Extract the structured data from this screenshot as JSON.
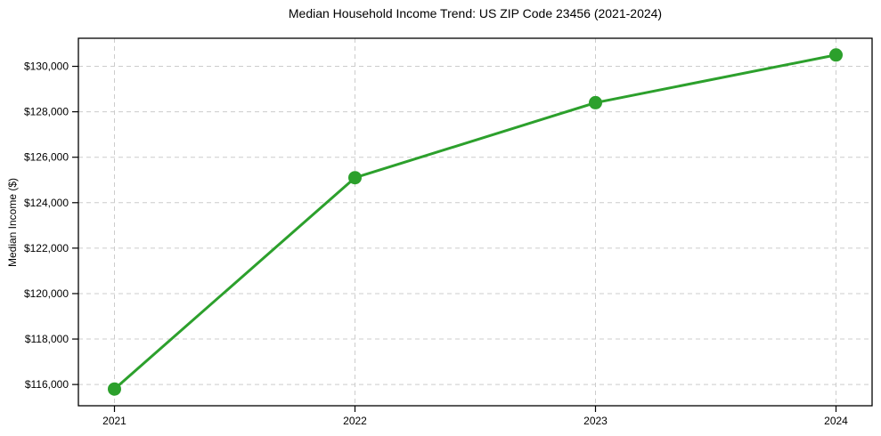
{
  "chart_data": {
    "type": "line",
    "title": "Median Household Income Trend: US ZIP Code 23456 (2021-2024)",
    "xlabel": "",
    "ylabel": "Median Income ($)",
    "x": [
      2021,
      2022,
      2023,
      2024
    ],
    "series": [
      {
        "name": "Median Household Income",
        "values": [
          115800,
          125100,
          128400,
          130500
        ]
      }
    ],
    "xtick_labels": [
      "2021",
      "2022",
      "2023",
      "2024"
    ],
    "ytick_values": [
      116000,
      118000,
      120000,
      122000,
      124000,
      126000,
      128000,
      130000
    ],
    "ytick_labels": [
      "$116,000",
      "$118,000",
      "$120,000",
      "$122,000",
      "$124,000",
      "$126,000",
      "$128,000",
      "$130,000"
    ],
    "xlim": [
      2020.85,
      2024.15
    ],
    "ylim": [
      115065,
      131235
    ],
    "grid": true,
    "grid_style": "dashed",
    "legend": false,
    "colors": {
      "line": "#2ca02c",
      "marker": "#2ca02c",
      "grid": "#cccccc",
      "axis": "#000000",
      "background": "#ffffff"
    }
  }
}
